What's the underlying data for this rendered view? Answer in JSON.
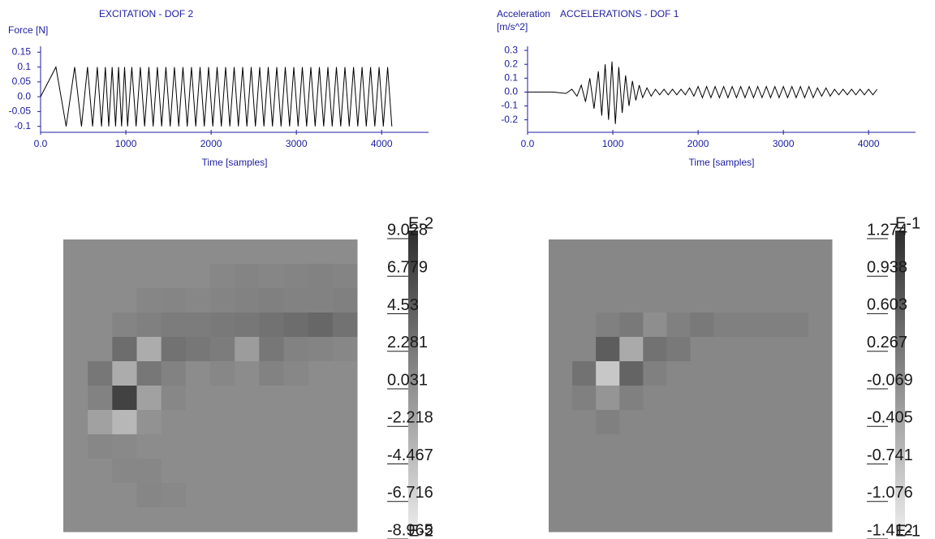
{
  "chart_data": [
    {
      "type": "line",
      "title": "EXCITATION - DOF 2",
      "y_label": [
        "Force [N]"
      ],
      "x_label": "Time [samples]",
      "x": [
        0,
        180,
        300,
        400,
        480,
        550,
        610,
        665,
        715,
        760,
        800,
        840,
        880,
        915,
        950,
        985,
        1020,
        1070,
        1120,
        1170,
        1220,
        1270,
        1320,
        1370,
        1420,
        1470,
        1520,
        1570,
        1620,
        1670,
        1720,
        1770,
        1820,
        1870,
        1920,
        1970,
        2020,
        2070,
        2120,
        2170,
        2220,
        2270,
        2320,
        2370,
        2420,
        2470,
        2520,
        2570,
        2620,
        2670,
        2720,
        2770,
        2820,
        2870,
        2920,
        2970,
        3020,
        3070,
        3120,
        3170,
        3220,
        3270,
        3320,
        3370,
        3420,
        3470,
        3520,
        3570,
        3620,
        3670,
        3720,
        3770,
        3820,
        3870,
        3920,
        3970,
        4020,
        4070,
        4120
      ],
      "series": [
        {
          "color": "#000000",
          "values": [
            0,
            0.1,
            -0.1,
            0.1,
            -0.1,
            0.1,
            -0.1,
            0.1,
            -0.1,
            0.1,
            -0.1,
            0.1,
            -0.1,
            0.1,
            -0.1,
            0.1,
            -0.1,
            0.1,
            -0.1,
            0.1,
            -0.1,
            0.1,
            -0.1,
            0.1,
            -0.1,
            0.1,
            -0.1,
            0.1,
            -0.1,
            0.1,
            -0.1,
            0.1,
            -0.1,
            0.1,
            -0.1,
            0.1,
            -0.1,
            0.1,
            -0.1,
            0.1,
            -0.1,
            0.1,
            -0.1,
            0.1,
            -0.1,
            0.1,
            -0.1,
            0.1,
            -0.1,
            0.1,
            -0.1,
            0.1,
            -0.1,
            0.1,
            -0.1,
            0.1,
            -0.1,
            0.1,
            -0.1,
            0.1,
            -0.1,
            0.1,
            -0.1,
            0.1,
            -0.1,
            0.1,
            -0.1,
            0.1,
            -0.1,
            0.1,
            -0.1,
            0.1,
            -0.1,
            0.1,
            -0.1,
            0.1,
            -0.1,
            0.1,
            -0.1
          ]
        }
      ],
      "xlim": [
        0,
        4550
      ],
      "ylim": [
        -0.12,
        0.17
      ],
      "xticks": [
        {
          "value": 0,
          "label": "0.0"
        },
        1000,
        2000,
        3000,
        4000
      ],
      "yticks": [
        0.15,
        0.1,
        0.05,
        {
          "value": 0,
          "label": "0.0"
        },
        -0.05,
        -0.1
      ]
    },
    {
      "type": "line",
      "title": "ACCELERATIONS - DOF 1",
      "y_label": [
        "Acceleration",
        "[m/s^2]"
      ],
      "x_label": "Time [samples]",
      "x": [
        0,
        300,
        450,
        520,
        580,
        630,
        680,
        730,
        780,
        830,
        870,
        910,
        950,
        990,
        1030,
        1070,
        1110,
        1150,
        1190,
        1230,
        1270,
        1310,
        1350,
        1400,
        1450,
        1500,
        1550,
        1600,
        1650,
        1700,
        1750,
        1800,
        1850,
        1900,
        1950,
        2000,
        2050,
        2100,
        2150,
        2200,
        2250,
        2300,
        2350,
        2400,
        2450,
        2500,
        2550,
        2600,
        2650,
        2700,
        2750,
        2800,
        2850,
        2900,
        2950,
        3000,
        3050,
        3100,
        3150,
        3200,
        3250,
        3300,
        3350,
        3400,
        3450,
        3500,
        3550,
        3600,
        3650,
        3700,
        3750,
        3800,
        3850,
        3900,
        3950,
        4000,
        4050,
        4100
      ],
      "series": [
        {
          "color": "#000000",
          "values": [
            0,
            0,
            -0.01,
            0.02,
            -0.03,
            0.05,
            -0.07,
            0.1,
            -0.12,
            0.15,
            -0.17,
            0.2,
            -0.2,
            0.22,
            -0.23,
            0.18,
            -0.15,
            0.12,
            -0.1,
            0.08,
            -0.06,
            0.05,
            -0.04,
            0.03,
            -0.03,
            0.02,
            -0.02,
            0.02,
            -0.02,
            0.02,
            -0.02,
            0.02,
            -0.02,
            0.03,
            -0.03,
            0.04,
            -0.04,
            0.04,
            -0.04,
            0.04,
            -0.04,
            0.04,
            -0.04,
            0.04,
            -0.04,
            0.04,
            -0.04,
            0.04,
            -0.04,
            0.04,
            -0.04,
            0.04,
            -0.04,
            0.04,
            -0.04,
            0.04,
            -0.04,
            0.04,
            -0.04,
            0.04,
            -0.04,
            0.04,
            -0.04,
            0.03,
            -0.03,
            0.03,
            -0.03,
            0.02,
            -0.02,
            0.02,
            -0.02,
            0.02,
            -0.02,
            0.02,
            -0.02,
            0.02,
            -0.02,
            0.02
          ]
        }
      ],
      "xlim": [
        0,
        4550
      ],
      "ylim": [
        -0.29,
        0.33
      ],
      "xticks": [
        {
          "value": 0,
          "label": "0.0"
        },
        1000,
        2000,
        3000,
        4000
      ],
      "yticks": [
        0.3,
        0.2,
        0.1,
        {
          "value": 0,
          "label": "0.0"
        },
        -0.1,
        -0.2
      ]
    },
    {
      "type": "heatmap",
      "zlim": [
        -8.965,
        9.028
      ],
      "zexponent": "E-2",
      "zticks": [
        9.028,
        6.779,
        4.53,
        2.281,
        0.031,
        -2.218,
        -4.467,
        -6.716,
        -8.965
      ],
      "z": [
        [
          0,
          0,
          0,
          0,
          0,
          0,
          0,
          0,
          0,
          0,
          0,
          0
        ],
        [
          0,
          0,
          0,
          0,
          0,
          0,
          0.5,
          0.8,
          0.6,
          0.8,
          1,
          0.8
        ],
        [
          0,
          0,
          0,
          0.6,
          0.7,
          0.5,
          0.8,
          1,
          1.2,
          1,
          1,
          1.2
        ],
        [
          0,
          0,
          0.8,
          1.2,
          1.5,
          1.5,
          1.8,
          2,
          2.5,
          3,
          3.5,
          2.5
        ],
        [
          0,
          0,
          3,
          -3,
          2.5,
          2,
          1.5,
          -1.5,
          2,
          1,
          0.8,
          0.5
        ],
        [
          0,
          2,
          -3,
          2,
          1,
          0,
          0.5,
          0,
          1,
          0.5,
          0,
          0
        ],
        [
          0,
          1,
          7,
          -2,
          0.5,
          0,
          0,
          0,
          0,
          0,
          0,
          0
        ],
        [
          0,
          -2,
          -4,
          -0.5,
          0,
          0,
          0,
          0,
          0,
          0,
          0,
          0
        ],
        [
          0,
          0.5,
          0.3,
          0,
          0,
          0,
          0,
          0,
          0,
          0,
          0,
          0
        ],
        [
          0,
          0,
          0.5,
          0.5,
          0,
          0,
          0,
          0,
          0,
          0,
          0,
          0
        ],
        [
          0,
          0,
          0,
          0.6,
          0.4,
          0,
          0,
          0,
          0,
          0,
          0,
          0
        ],
        [
          0,
          0,
          0,
          0,
          0,
          0,
          0,
          0,
          0,
          0,
          0,
          0
        ]
      ]
    },
    {
      "type": "heatmap",
      "zlim": [
        -1.412,
        1.274
      ],
      "zexponent": "E-1",
      "zticks": [
        1.274,
        0.938,
        0.603,
        0.267,
        -0.069,
        -0.405,
        -0.741,
        -1.076,
        -1.412
      ],
      "z": [
        [
          0,
          0,
          0,
          0,
          0,
          0,
          0,
          0,
          0,
          0,
          0,
          0
        ],
        [
          0,
          0,
          0,
          0,
          0,
          0,
          0,
          0,
          0,
          0,
          0,
          0
        ],
        [
          0,
          0,
          0,
          0,
          0,
          0,
          0,
          0,
          0,
          0,
          0,
          0
        ],
        [
          0,
          0,
          0.1,
          0.2,
          -0.1,
          0.1,
          0.2,
          0.1,
          0.1,
          0.1,
          0.1,
          0
        ],
        [
          0,
          0,
          0.6,
          -0.5,
          0.3,
          0.2,
          0,
          0,
          0,
          0,
          0,
          0
        ],
        [
          0,
          0.3,
          -0.9,
          0.5,
          0.1,
          0,
          0,
          0,
          0,
          0,
          0,
          0
        ],
        [
          0,
          0.1,
          -0.2,
          0.1,
          0,
          0,
          0,
          0,
          0,
          0,
          0,
          0
        ],
        [
          0,
          0,
          0.1,
          0,
          0,
          0,
          0,
          0,
          0,
          0,
          0,
          0
        ],
        [
          0,
          0,
          0,
          0,
          0,
          0,
          0,
          0,
          0,
          0,
          0,
          0
        ],
        [
          0,
          0,
          0,
          0,
          0,
          0,
          0,
          0,
          0,
          0,
          0,
          0
        ],
        [
          0,
          0,
          0,
          0,
          0,
          0,
          0,
          0,
          0,
          0,
          0,
          0
        ],
        [
          0,
          0,
          0,
          0,
          0,
          0,
          0,
          0,
          0,
          0,
          0,
          0
        ]
      ]
    }
  ]
}
